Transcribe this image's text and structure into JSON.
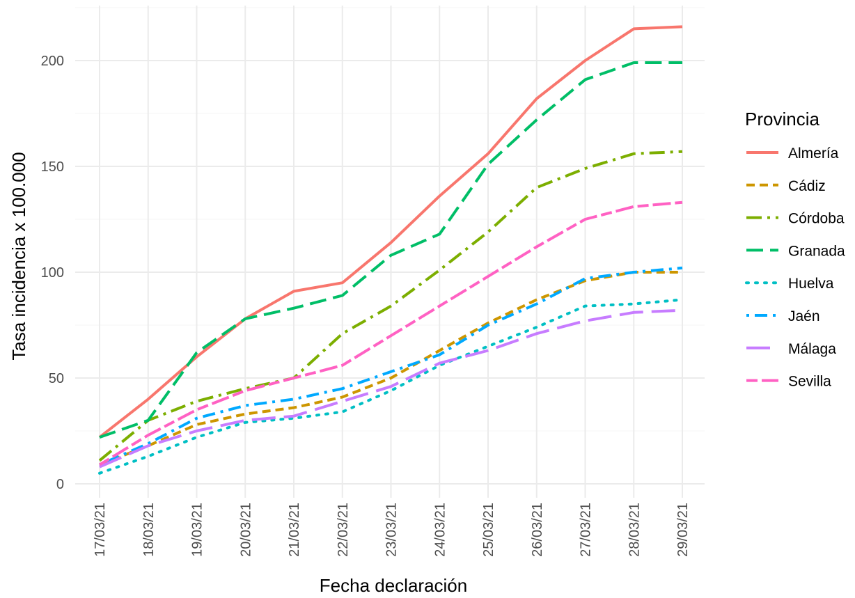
{
  "chart_data": {
    "type": "line",
    "title": "",
    "xlabel": "Fecha declaración",
    "ylabel": "Tasa incidencia x 100.000",
    "categories": [
      "17/03/21",
      "18/03/21",
      "19/03/21",
      "20/03/21",
      "21/03/21",
      "22/03/21",
      "23/03/21",
      "24/03/21",
      "25/03/21",
      "26/03/21",
      "27/03/21",
      "28/03/21",
      "29/03/21"
    ],
    "ylim": [
      -7,
      223
    ],
    "yticks": [
      0,
      50,
      100,
      150,
      200
    ],
    "grid": true,
    "legend": {
      "title": "Provincia",
      "position": "right"
    },
    "series": [
      {
        "name": "Almería",
        "color": "#F8766D",
        "dash": "solid",
        "values": [
          22,
          40,
          60,
          78,
          91,
          95,
          114,
          136,
          156,
          182,
          200,
          215,
          216
        ]
      },
      {
        "name": "Cádiz",
        "color": "#CD9600",
        "dash": "dashed",
        "values": [
          9,
          18,
          28,
          33,
          36,
          41,
          50,
          63,
          76,
          87,
          96,
          100,
          100
        ]
      },
      {
        "name": "Córdoba",
        "color": "#7CAE00",
        "dash": "longdash-dot",
        "values": [
          11,
          30,
          39,
          45,
          50,
          71,
          84,
          101,
          119,
          140,
          149,
          156,
          157
        ]
      },
      {
        "name": "Granada",
        "color": "#00BE67",
        "dash": "longdash",
        "values": [
          22,
          30,
          62,
          78,
          83,
          89,
          108,
          118,
          151,
          172,
          191,
          199,
          199
        ]
      },
      {
        "name": "Huelva",
        "color": "#00BFC4",
        "dash": "dotted",
        "values": [
          5,
          13,
          22,
          29,
          31,
          34,
          44,
          56,
          65,
          74,
          84,
          85,
          87
        ]
      },
      {
        "name": "Jaén",
        "color": "#00A9FF",
        "dash": "dot-dash",
        "values": [
          9,
          19,
          31,
          37,
          40,
          45,
          53,
          61,
          75,
          85,
          97,
          100,
          102
        ]
      },
      {
        "name": "Málaga",
        "color": "#C77CFF",
        "dash": "longdash-plain",
        "values": [
          8,
          18,
          25,
          30,
          32,
          39,
          46,
          57,
          63,
          71,
          77,
          81,
          82
        ]
      },
      {
        "name": "Sevilla",
        "color": "#FF61C3",
        "dash": "twodash",
        "values": [
          9,
          23,
          35,
          44,
          50,
          56,
          70,
          84,
          98,
          112,
          125,
          131,
          133
        ]
      }
    ]
  }
}
